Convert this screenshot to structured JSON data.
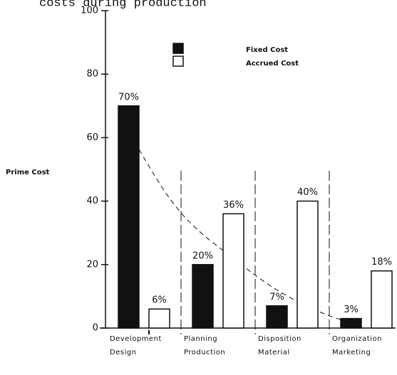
{
  "chart_data": {
    "type": "bar",
    "title": "costs during production",
    "y_label": "Prime Cost",
    "categories": [
      [
        "Development",
        "Design"
      ],
      [
        "Planning",
        "Production"
      ],
      [
        "Disposition",
        "Material"
      ],
      [
        "Organization",
        "Marketing"
      ]
    ],
    "series": [
      {
        "name": "Fixed Cost",
        "color": "#111111",
        "values": [
          70,
          20,
          7,
          3
        ],
        "value_labels": [
          "70%",
          "20%",
          "7%",
          "3%"
        ]
      },
      {
        "name": "Accrued Cost",
        "color": "#ffffff",
        "values": [
          6,
          36,
          40,
          18
        ],
        "value_labels": [
          "6%",
          "36%",
          "40%",
          "18%"
        ]
      }
    ],
    "ylim": [
      0,
      100
    ],
    "yticks": [
      0,
      20,
      40,
      60,
      80,
      100
    ]
  }
}
